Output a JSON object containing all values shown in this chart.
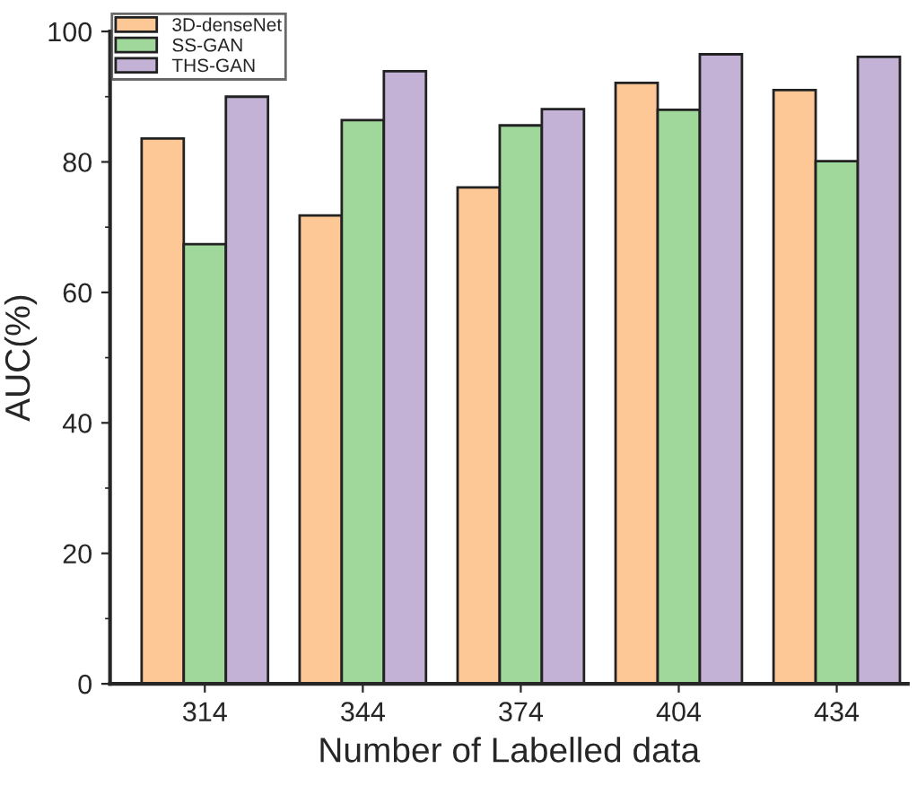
{
  "chart_data": {
    "type": "bar",
    "xlabel": "Number of Labelled data",
    "ylabel": "AUC(%)",
    "categories": [
      "314",
      "344",
      "374",
      "404",
      "434"
    ],
    "series": [
      {
        "name": "3D-denseNet",
        "color": "#fdc896",
        "values": [
          83.6,
          71.8,
          76.1,
          92.1,
          91.0
        ]
      },
      {
        "name": "SS-GAN",
        "color": "#a0d89c",
        "values": [
          67.4,
          86.4,
          85.6,
          88.0,
          80.1
        ]
      },
      {
        "name": "THS-GAN",
        "color": "#c3b1d6",
        "values": [
          90.0,
          93.9,
          88.1,
          96.5,
          96.1
        ]
      }
    ],
    "ylim": [
      0,
      100
    ],
    "yticks": [
      0,
      20,
      40,
      60,
      80,
      100
    ],
    "grid": false,
    "legend": "top left"
  }
}
